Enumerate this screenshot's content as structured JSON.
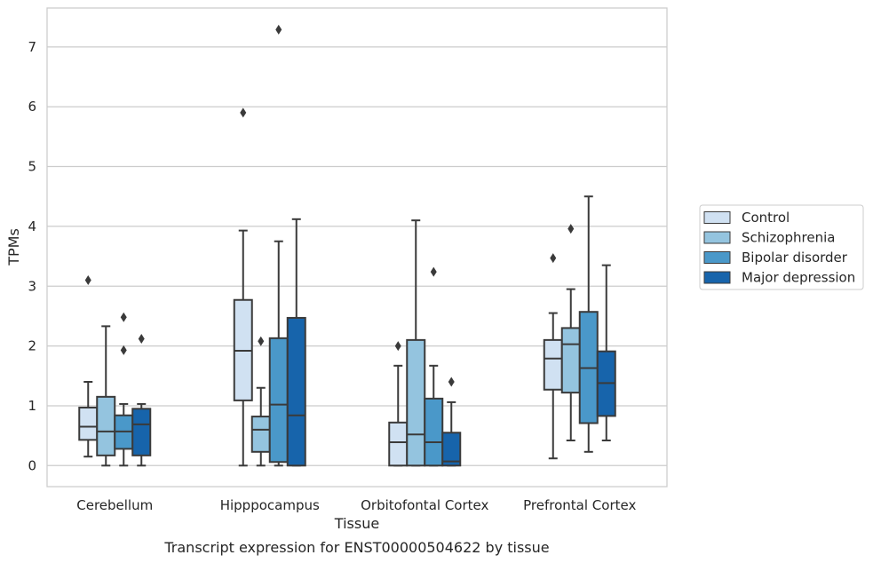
{
  "caption": "Transcript expression for ENST00000504622 by tissue",
  "chart_data": {
    "type": "box",
    "xlabel": "Tissue",
    "ylabel": "TPMs",
    "ylim": [
      -0.35,
      7.65
    ],
    "yticks": [
      0,
      1,
      2,
      3,
      4,
      5,
      6,
      7
    ],
    "grid": "horizontal",
    "legend_position": "right",
    "categories": [
      "Cerebellum",
      "Hipppocampus",
      "Orbitofontal Cortex",
      "Prefrontal Cortex"
    ],
    "series": [
      {
        "name": "Control",
        "color": "#d0e1f2",
        "boxes": [
          {
            "whisker_low": 0.15,
            "q1": 0.43,
            "median": 0.65,
            "q3": 0.97,
            "whisker_high": 1.4,
            "outliers": [
              3.1
            ]
          },
          {
            "whisker_low": 0.0,
            "q1": 1.09,
            "median": 1.92,
            "q3": 2.77,
            "whisker_high": 3.93,
            "outliers": [
              5.9
            ]
          },
          {
            "whisker_low": 0.0,
            "q1": 0.0,
            "median": 0.39,
            "q3": 0.72,
            "whisker_high": 1.67,
            "outliers": [
              2.0
            ]
          },
          {
            "whisker_low": 0.12,
            "q1": 1.27,
            "median": 1.79,
            "q3": 2.1,
            "whisker_high": 2.55,
            "outliers": [
              3.47
            ]
          }
        ]
      },
      {
        "name": "Schizophrenia",
        "color": "#94c4df",
        "boxes": [
          {
            "whisker_low": 0.0,
            "q1": 0.17,
            "median": 0.57,
            "q3": 1.15,
            "whisker_high": 2.33,
            "outliers": []
          },
          {
            "whisker_low": 0.0,
            "q1": 0.23,
            "median": 0.6,
            "q3": 0.82,
            "whisker_high": 1.3,
            "outliers": [
              2.08
            ]
          },
          {
            "whisker_low": 0.0,
            "q1": 0.0,
            "median": 0.52,
            "q3": 2.1,
            "whisker_high": 4.1,
            "outliers": []
          },
          {
            "whisker_low": 0.42,
            "q1": 1.22,
            "median": 2.03,
            "q3": 2.3,
            "whisker_high": 2.95,
            "outliers": [
              3.96
            ]
          }
        ]
      },
      {
        "name": "Bipolar disorder",
        "color": "#4a98c9",
        "boxes": [
          {
            "whisker_low": 0.0,
            "q1": 0.28,
            "median": 0.57,
            "q3": 0.84,
            "whisker_high": 1.03,
            "outliers": [
              1.93,
              2.48
            ]
          },
          {
            "whisker_low": 0.0,
            "q1": 0.06,
            "median": 1.02,
            "q3": 2.13,
            "whisker_high": 3.75,
            "outliers": [
              7.29
            ]
          },
          {
            "whisker_low": 0.0,
            "q1": 0.0,
            "median": 0.39,
            "q3": 1.12,
            "whisker_high": 1.67,
            "outliers": [
              3.24
            ]
          },
          {
            "whisker_low": 0.23,
            "q1": 0.71,
            "median": 1.63,
            "q3": 2.57,
            "whisker_high": 4.5,
            "outliers": []
          }
        ]
      },
      {
        "name": "Major depression",
        "color": "#1764ab",
        "boxes": [
          {
            "whisker_low": 0.0,
            "q1": 0.17,
            "median": 0.69,
            "q3": 0.95,
            "whisker_high": 1.03,
            "outliers": [
              2.12
            ]
          },
          {
            "whisker_low": 0.0,
            "q1": 0.0,
            "median": 0.84,
            "q3": 2.47,
            "whisker_high": 4.12,
            "outliers": []
          },
          {
            "whisker_low": 0.0,
            "q1": 0.0,
            "median": 0.07,
            "q3": 0.55,
            "whisker_high": 1.06,
            "outliers": [
              1.4
            ]
          },
          {
            "whisker_low": 0.42,
            "q1": 0.83,
            "median": 1.38,
            "q3": 1.91,
            "whisker_high": 3.35,
            "outliers": []
          }
        ]
      }
    ]
  }
}
